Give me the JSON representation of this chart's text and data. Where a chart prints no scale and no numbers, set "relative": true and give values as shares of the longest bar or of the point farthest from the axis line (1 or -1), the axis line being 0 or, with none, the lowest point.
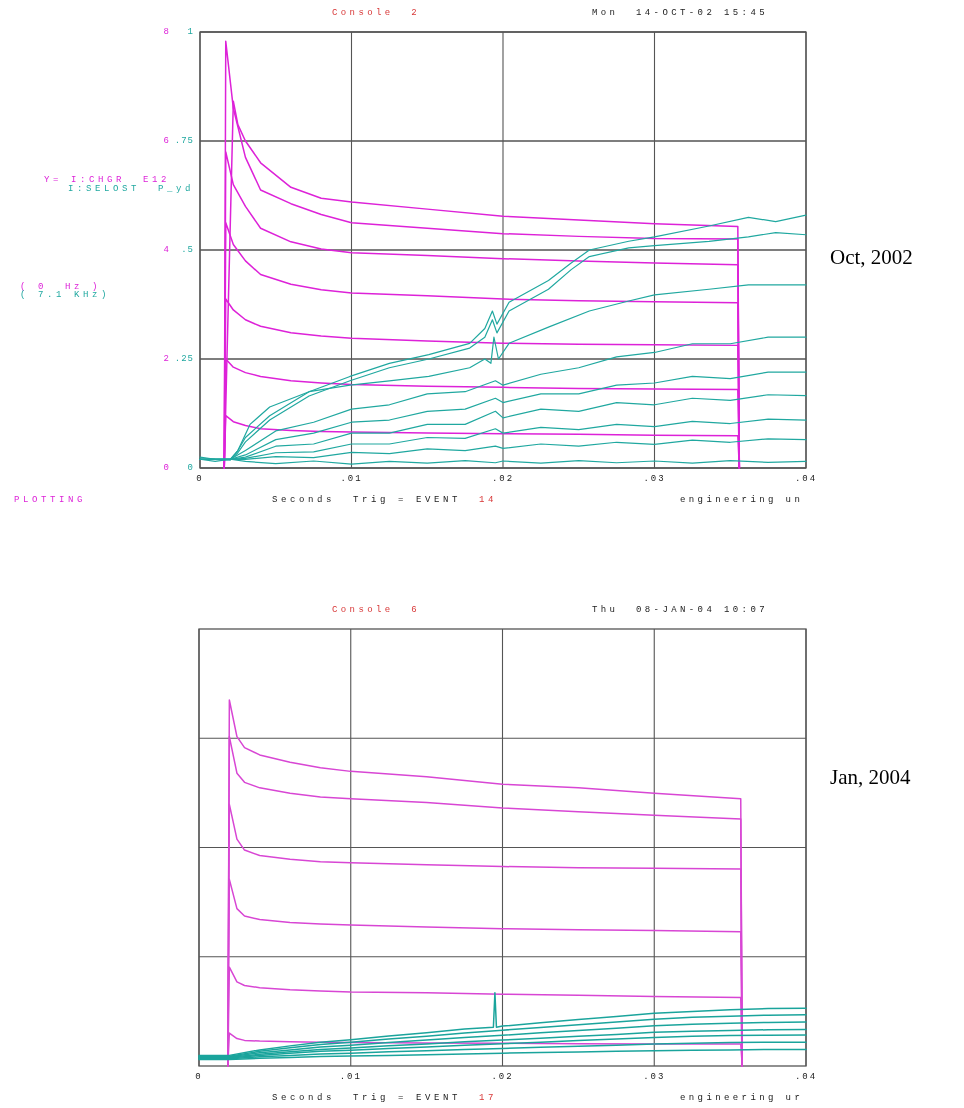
{
  "chart_data": [
    {
      "type": "line",
      "title": "Console  2",
      "subtitle": "Mon  14-OCT-02 15:45",
      "xlabel": "Seconds  Trig = EVENT  14",
      "ylabel": "Y= I:CHGR  E12",
      "annotations": [
        "engineering un",
        "I:SELOST  P_yd",
        "( 0  Hz )",
        "( 7.1 KHz)",
        "PLOTTING",
        "Oct, 2002"
      ],
      "xlim": [
        0,
        0.04
      ],
      "xticks": [
        0,
        {
          "value": 0.01,
          "label": ".01"
        },
        {
          "value": 0.02,
          "label": ".02"
        },
        {
          "value": 0.03,
          "label": ".03"
        },
        {
          "value": 0.04,
          "label": ".04"
        }
      ],
      "ylim": [
        0,
        8
      ],
      "yticks": [
        0,
        2,
        4,
        6,
        8
      ],
      "y2lim": [
        0,
        1
      ],
      "y2ticks": [
        0,
        {
          "value": 0.25,
          "label": ".25"
        },
        {
          "value": 0.5,
          "label": ".5"
        },
        {
          "value": 0.75,
          "label": ".75"
        },
        1
      ],
      "grid": true,
      "series": [
        {
          "color": "#dd22d8",
          "x": [
            0.0016,
            0.0022,
            0.0025,
            0.003,
            0.004,
            0.006,
            0.008,
            0.01,
            0.015,
            0.02,
            0.025,
            0.03,
            0.0355,
            0.0356
          ],
          "values": [
            0,
            6.73,
            6.3,
            6.0,
            5.6,
            5.15,
            4.95,
            4.88,
            4.75,
            4.62,
            4.55,
            4.48,
            4.43,
            0
          ]
        },
        {
          "color": "#dd22d8",
          "x": [
            0.0016,
            0.0017,
            0.0022,
            0.003,
            0.004,
            0.006,
            0.008,
            0.01,
            0.015,
            0.02,
            0.025,
            0.03,
            0.0355,
            0.0356
          ],
          "values": [
            0,
            7.83,
            6.6,
            5.7,
            5.1,
            4.85,
            4.65,
            4.5,
            4.4,
            4.3,
            4.25,
            4.21,
            4.2,
            0
          ]
        },
        {
          "color": "#dd22d8",
          "x": [
            0.0016,
            0.0017,
            0.0022,
            0.003,
            0.004,
            0.006,
            0.008,
            0.01,
            0.015,
            0.02,
            0.025,
            0.03,
            0.0355,
            0.0356
          ],
          "values": [
            0,
            5.8,
            5.2,
            4.8,
            4.4,
            4.15,
            4.02,
            3.95,
            3.9,
            3.84,
            3.8,
            3.76,
            3.73,
            0
          ]
        },
        {
          "color": "#dd22d8",
          "x": [
            0.0016,
            0.0017,
            0.0022,
            0.003,
            0.004,
            0.006,
            0.008,
            0.01,
            0.015,
            0.02,
            0.025,
            0.03,
            0.0355,
            0.0356
          ],
          "values": [
            0,
            4.5,
            4.1,
            3.8,
            3.55,
            3.37,
            3.27,
            3.21,
            3.16,
            3.1,
            3.07,
            3.05,
            3.03,
            0
          ]
        },
        {
          "color": "#dd22d8",
          "x": [
            0.0016,
            0.0017,
            0.0022,
            0.003,
            0.004,
            0.006,
            0.008,
            0.01,
            0.015,
            0.02,
            0.025,
            0.03,
            0.0355,
            0.0356
          ],
          "values": [
            0,
            3.1,
            2.9,
            2.72,
            2.6,
            2.48,
            2.42,
            2.38,
            2.33,
            2.29,
            2.27,
            2.26,
            2.25,
            0
          ]
        },
        {
          "color": "#dd22d8",
          "x": [
            0.0016,
            0.0017,
            0.0022,
            0.003,
            0.004,
            0.006,
            0.008,
            0.01,
            0.015,
            0.02,
            0.025,
            0.03,
            0.0355,
            0.0356
          ],
          "values": [
            0,
            2.0,
            1.85,
            1.75,
            1.68,
            1.6,
            1.56,
            1.53,
            1.5,
            1.48,
            1.46,
            1.45,
            1.44,
            0
          ]
        },
        {
          "color": "#dd22d8",
          "x": [
            0.0016,
            0.0017,
            0.0022,
            0.003,
            0.004,
            0.006,
            0.008,
            0.01,
            0.015,
            0.02,
            0.025,
            0.03,
            0.0355,
            0.0356
          ],
          "values": [
            0,
            0.96,
            0.85,
            0.78,
            0.72,
            0.69,
            0.67,
            0.66,
            0.64,
            0.63,
            0.62,
            0.6,
            0.59,
            0
          ]
        },
        {
          "color": "#20a8a0",
          "axis": "y2",
          "x": [
            0,
            0.001,
            0.002,
            0.0025,
            0.003,
            0.0046,
            0.0072,
            0.0099,
            0.0125,
            0.0151,
            0.0178,
            0.0188,
            0.0193,
            0.0196,
            0.0204,
            0.023,
            0.0245,
            0.0257,
            0.0283,
            0.03,
            0.0336,
            0.0362,
            0.038,
            0.04
          ],
          "values": [
            0.02,
            0.015,
            0.02,
            0.04,
            0.07,
            0.12,
            0.175,
            0.21,
            0.24,
            0.26,
            0.286,
            0.32,
            0.36,
            0.33,
            0.38,
            0.43,
            0.47,
            0.5,
            0.52,
            0.53,
            0.555,
            0.575,
            0.565,
            0.58
          ]
        },
        {
          "color": "#20a8a0",
          "axis": "y2",
          "x": [
            0,
            0.001,
            0.002,
            0.0025,
            0.003,
            0.0046,
            0.0072,
            0.0099,
            0.0125,
            0.0151,
            0.0178,
            0.0188,
            0.0193,
            0.0196,
            0.0204,
            0.023,
            0.0245,
            0.0257,
            0.0283,
            0.03,
            0.0336,
            0.0362,
            0.038,
            0.04
          ],
          "values": [
            0.025,
            0.02,
            0.018,
            0.035,
            0.06,
            0.11,
            0.165,
            0.2,
            0.23,
            0.25,
            0.275,
            0.3,
            0.34,
            0.31,
            0.36,
            0.41,
            0.455,
            0.485,
            0.505,
            0.51,
            0.52,
            0.53,
            0.54,
            0.535
          ]
        },
        {
          "color": "#20a8a0",
          "axis": "y2",
          "x": [
            0,
            0.002,
            0.0025,
            0.0033,
            0.0046,
            0.0072,
            0.0099,
            0.0125,
            0.0151,
            0.0178,
            0.0188,
            0.0192,
            0.0194,
            0.0197,
            0.0204,
            0.023,
            0.0257,
            0.0283,
            0.03,
            0.0336,
            0.0362,
            0.04
          ],
          "values": [
            0.02,
            0.02,
            0.04,
            0.1,
            0.14,
            0.175,
            0.19,
            0.2,
            0.21,
            0.23,
            0.25,
            0.24,
            0.3,
            0.25,
            0.286,
            0.323,
            0.36,
            0.383,
            0.397,
            0.41,
            0.42,
            0.42
          ]
        },
        {
          "color": "#20a8a0",
          "axis": "y2",
          "x": [
            0,
            0.002,
            0.003,
            0.005,
            0.0075,
            0.01,
            0.0125,
            0.015,
            0.0175,
            0.0195,
            0.02,
            0.0225,
            0.025,
            0.0275,
            0.03,
            0.0325,
            0.035,
            0.0375,
            0.04
          ],
          "values": [
            0.02,
            0.02,
            0.04,
            0.085,
            0.105,
            0.135,
            0.145,
            0.17,
            0.175,
            0.2,
            0.19,
            0.215,
            0.23,
            0.255,
            0.265,
            0.285,
            0.285,
            0.3,
            0.3
          ]
        },
        {
          "color": "#20a8a0",
          "axis": "y2",
          "x": [
            0,
            0.002,
            0.003,
            0.005,
            0.0075,
            0.01,
            0.0125,
            0.015,
            0.0175,
            0.0195,
            0.02,
            0.0225,
            0.025,
            0.0275,
            0.03,
            0.0325,
            0.035,
            0.0375,
            0.04
          ],
          "values": [
            0.02,
            0.02,
            0.03,
            0.065,
            0.08,
            0.105,
            0.11,
            0.13,
            0.135,
            0.16,
            0.15,
            0.17,
            0.17,
            0.19,
            0.195,
            0.21,
            0.205,
            0.22,
            0.22
          ]
        },
        {
          "color": "#20a8a0",
          "axis": "y2",
          "x": [
            0,
            0.002,
            0.003,
            0.005,
            0.0075,
            0.01,
            0.0125,
            0.015,
            0.0175,
            0.0195,
            0.02,
            0.0225,
            0.025,
            0.0275,
            0.03,
            0.0325,
            0.035,
            0.0375,
            0.04
          ],
          "values": [
            0.02,
            0.02,
            0.025,
            0.05,
            0.055,
            0.08,
            0.08,
            0.1,
            0.1,
            0.13,
            0.115,
            0.135,
            0.13,
            0.15,
            0.145,
            0.16,
            0.155,
            0.168,
            0.166
          ]
        },
        {
          "color": "#20a8a0",
          "axis": "y2",
          "x": [
            0,
            0.002,
            0.003,
            0.005,
            0.0075,
            0.01,
            0.0125,
            0.015,
            0.0175,
            0.0195,
            0.02,
            0.0225,
            0.025,
            0.0275,
            0.03,
            0.0325,
            0.035,
            0.0375,
            0.04
          ],
          "values": [
            0.02,
            0.02,
            0.022,
            0.035,
            0.037,
            0.055,
            0.055,
            0.07,
            0.068,
            0.09,
            0.08,
            0.093,
            0.088,
            0.1,
            0.095,
            0.107,
            0.102,
            0.112,
            0.11
          ]
        },
        {
          "color": "#20a8a0",
          "axis": "y2",
          "x": [
            0,
            0.002,
            0.003,
            0.005,
            0.0075,
            0.01,
            0.0125,
            0.015,
            0.0175,
            0.0195,
            0.02,
            0.0225,
            0.025,
            0.0275,
            0.03,
            0.0325,
            0.035,
            0.0375,
            0.04
          ],
          "values": [
            0.02,
            0.02,
            0.02,
            0.026,
            0.024,
            0.036,
            0.033,
            0.044,
            0.04,
            0.05,
            0.045,
            0.055,
            0.05,
            0.059,
            0.054,
            0.064,
            0.059,
            0.067,
            0.065
          ]
        },
        {
          "color": "#20a8a0",
          "axis": "y2",
          "x": [
            0,
            0.002,
            0.003,
            0.005,
            0.0075,
            0.01,
            0.0125,
            0.015,
            0.0175,
            0.0195,
            0.02,
            0.0225,
            0.025,
            0.0275,
            0.03,
            0.0325,
            0.035,
            0.0375,
            0.04
          ],
          "values": [
            0.02,
            0.02,
            0.015,
            0.01,
            0.016,
            0.009,
            0.015,
            0.011,
            0.017,
            0.012,
            0.016,
            0.011,
            0.017,
            0.012,
            0.016,
            0.011,
            0.017,
            0.013,
            0.015
          ]
        }
      ]
    },
    {
      "type": "line",
      "title": "Console  6",
      "subtitle": "Thu  08-JAN-04 10:07",
      "xlabel": "Seconds  Trig = EVENT  17",
      "annotations": [
        "engineering ur",
        "Jan, 2004"
      ],
      "relative": true,
      "xlim": [
        0,
        0.04
      ],
      "xticks": [
        0,
        {
          "value": 0.01,
          "label": ".01"
        },
        {
          "value": 0.02,
          "label": ".02"
        },
        {
          "value": 0.03,
          "label": ".03"
        },
        {
          "value": 0.04,
          "label": ".04"
        }
      ],
      "grid": true,
      "series": [
        {
          "color": "#d846d4",
          "x": [
            0.0019,
            0.002,
            0.0025,
            0.003,
            0.004,
            0.006,
            0.008,
            0.01,
            0.015,
            0.02,
            0.025,
            0.03,
            0.0357,
            0.0358
          ],
          "values": [
            0,
            1,
            0.9,
            0.87,
            0.85,
            0.83,
            0.815,
            0.805,
            0.79,
            0.77,
            0.76,
            0.745,
            0.73,
            0
          ]
        },
        {
          "color": "#d846d4",
          "x": [
            0.0019,
            0.002,
            0.0025,
            0.003,
            0.004,
            0.006,
            0.008,
            0.01,
            0.015,
            0.02,
            0.025,
            0.03,
            0.0357,
            0.0358
          ],
          "values": [
            0,
            0.9,
            0.8,
            0.775,
            0.76,
            0.745,
            0.735,
            0.73,
            0.72,
            0.705,
            0.695,
            0.685,
            0.675,
            0
          ]
        },
        {
          "color": "#d846d4",
          "x": [
            0.0019,
            0.002,
            0.0025,
            0.003,
            0.004,
            0.006,
            0.008,
            0.01,
            0.015,
            0.02,
            0.025,
            0.03,
            0.0357,
            0.0358
          ],
          "values": [
            0,
            0.715,
            0.62,
            0.59,
            0.575,
            0.565,
            0.558,
            0.555,
            0.55,
            0.545,
            0.542,
            0.54,
            0.538,
            0
          ]
        },
        {
          "color": "#d846d4",
          "x": [
            0.0019,
            0.002,
            0.0025,
            0.003,
            0.004,
            0.006,
            0.008,
            0.01,
            0.015,
            0.02,
            0.025,
            0.03,
            0.0357,
            0.0358
          ],
          "values": [
            0,
            0.51,
            0.43,
            0.41,
            0.4,
            0.392,
            0.388,
            0.385,
            0.38,
            0.375,
            0.372,
            0.37,
            0.367,
            0
          ]
        },
        {
          "color": "#d846d4",
          "x": [
            0.0019,
            0.002,
            0.0025,
            0.003,
            0.004,
            0.006,
            0.008,
            0.01,
            0.015,
            0.02,
            0.025,
            0.03,
            0.0357,
            0.0358
          ],
          "values": [
            0,
            0.27,
            0.23,
            0.22,
            0.214,
            0.208,
            0.205,
            0.202,
            0.2,
            0.196,
            0.193,
            0.19,
            0.187,
            0
          ]
        },
        {
          "color": "#d846d4",
          "x": [
            0.0019,
            0.002,
            0.0025,
            0.003,
            0.004,
            0.006,
            0.008,
            0.01,
            0.015,
            0.02,
            0.025,
            0.03,
            0.0357,
            0.0358
          ],
          "values": [
            0,
            0.09,
            0.075,
            0.07,
            0.068,
            0.066,
            0.065,
            0.064,
            0.063,
            0.062,
            0.061,
            0.06,
            0.06,
            0
          ]
        },
        {
          "color": "#1aa49c",
          "x": [
            0,
            0.002,
            0.004,
            0.006,
            0.008,
            0.01,
            0.0125,
            0.015,
            0.0175,
            0.0194,
            0.0195,
            0.0196,
            0.02,
            0.0225,
            0.025,
            0.0275,
            0.03,
            0.0325,
            0.035,
            0.0375,
            0.04
          ],
          "values": [
            0.029,
            0.029,
            0.044,
            0.055,
            0.065,
            0.072,
            0.082,
            0.091,
            0.101,
            0.106,
            0.2,
            0.106,
            0.109,
            0.118,
            0.127,
            0.135,
            0.144,
            0.149,
            0.154,
            0.157,
            0.158
          ]
        },
        {
          "color": "#1aa49c",
          "x": [
            0,
            0.002,
            0.004,
            0.006,
            0.008,
            0.01,
            0.0125,
            0.015,
            0.0175,
            0.02,
            0.0225,
            0.025,
            0.0275,
            0.03,
            0.0325,
            0.035,
            0.0375,
            0.04
          ],
          "values": [
            0.027,
            0.027,
            0.04,
            0.05,
            0.059,
            0.065,
            0.074,
            0.081,
            0.09,
            0.098,
            0.105,
            0.113,
            0.12,
            0.128,
            0.133,
            0.136,
            0.139,
            0.14
          ]
        },
        {
          "color": "#1aa49c",
          "x": [
            0,
            0.002,
            0.004,
            0.006,
            0.008,
            0.01,
            0.0125,
            0.015,
            0.0175,
            0.02,
            0.0225,
            0.025,
            0.0275,
            0.03,
            0.0325,
            0.035,
            0.0375,
            0.04
          ],
          "values": [
            0.025,
            0.025,
            0.036,
            0.044,
            0.052,
            0.057,
            0.064,
            0.071,
            0.078,
            0.084,
            0.091,
            0.097,
            0.103,
            0.11,
            0.114,
            0.117,
            0.119,
            0.12
          ]
        },
        {
          "color": "#1aa49c",
          "x": [
            0,
            0.002,
            0.004,
            0.006,
            0.008,
            0.01,
            0.0125,
            0.015,
            0.0175,
            0.02,
            0.0225,
            0.025,
            0.0275,
            0.03,
            0.0325,
            0.035,
            0.0375,
            0.04
          ],
          "values": [
            0.024,
            0.024,
            0.032,
            0.039,
            0.045,
            0.049,
            0.055,
            0.06,
            0.066,
            0.071,
            0.076,
            0.081,
            0.086,
            0.092,
            0.095,
            0.097,
            0.099,
            0.1
          ]
        },
        {
          "color": "#1aa49c",
          "x": [
            0,
            0.002,
            0.004,
            0.006,
            0.008,
            0.01,
            0.0125,
            0.015,
            0.0175,
            0.02,
            0.0225,
            0.025,
            0.0275,
            0.03,
            0.0325,
            0.035,
            0.0375,
            0.04
          ],
          "values": [
            0.022,
            0.022,
            0.029,
            0.035,
            0.04,
            0.043,
            0.048,
            0.052,
            0.057,
            0.061,
            0.065,
            0.07,
            0.074,
            0.078,
            0.081,
            0.083,
            0.084,
            0.085
          ]
        },
        {
          "color": "#1aa49c",
          "x": [
            0,
            0.002,
            0.004,
            0.006,
            0.008,
            0.01,
            0.0125,
            0.015,
            0.0175,
            0.02,
            0.0225,
            0.025,
            0.0275,
            0.03,
            0.0325,
            0.035,
            0.0375,
            0.04
          ],
          "values": [
            0.02,
            0.02,
            0.025,
            0.029,
            0.033,
            0.035,
            0.039,
            0.042,
            0.045,
            0.048,
            0.051,
            0.054,
            0.057,
            0.06,
            0.062,
            0.064,
            0.065,
            0.065
          ]
        },
        {
          "color": "#1aa49c",
          "x": [
            0,
            0.002,
            0.004,
            0.006,
            0.008,
            0.01,
            0.0125,
            0.015,
            0.0175,
            0.02,
            0.0225,
            0.025,
            0.0275,
            0.03,
            0.0325,
            0.035,
            0.0375,
            0.04
          ],
          "values": [
            0.018,
            0.018,
            0.021,
            0.023,
            0.026,
            0.027,
            0.029,
            0.031,
            0.033,
            0.035,
            0.037,
            0.038,
            0.04,
            0.042,
            0.043,
            0.044,
            0.045,
            0.045
          ]
        }
      ]
    }
  ]
}
